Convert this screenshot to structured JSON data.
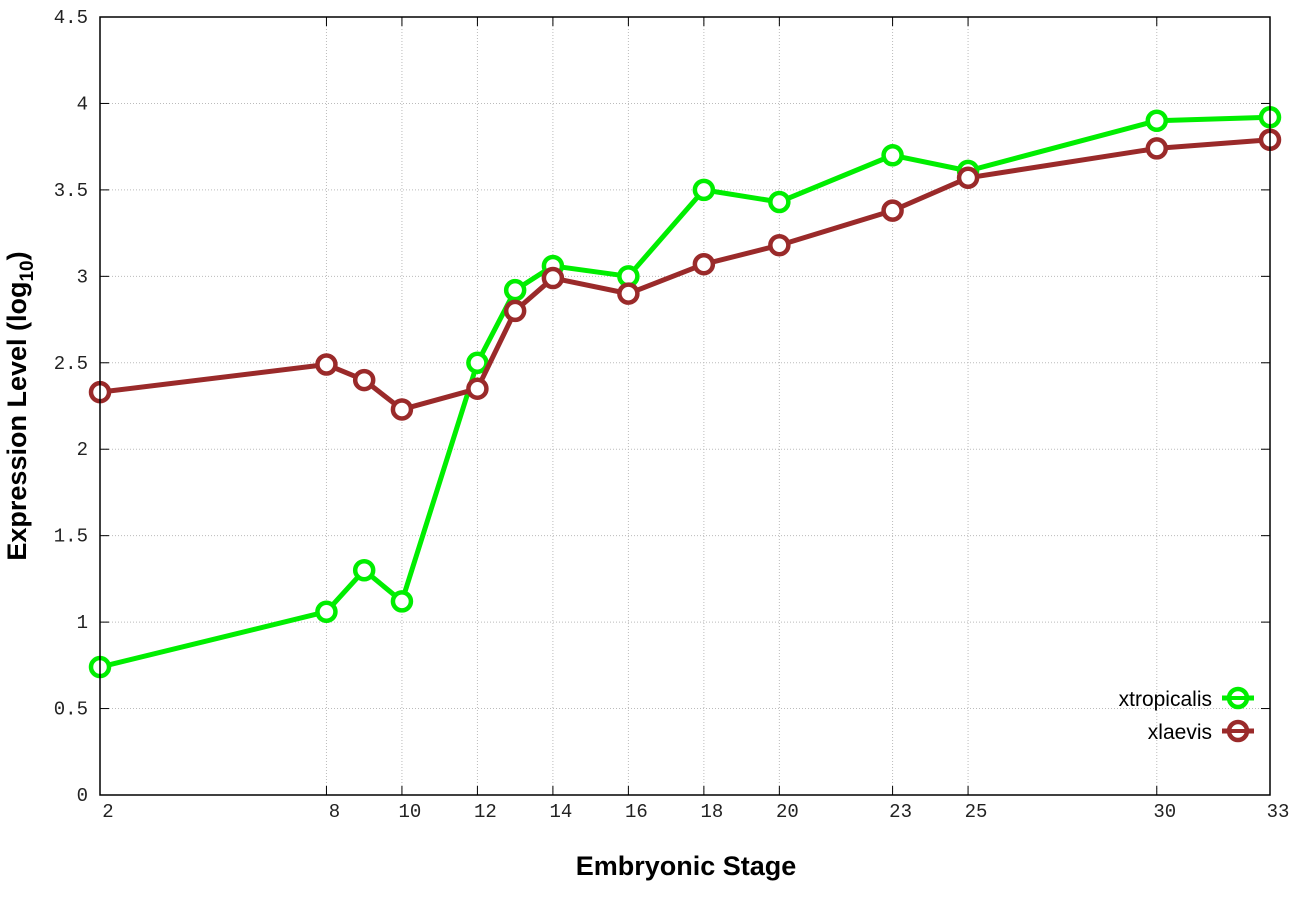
{
  "chart_data": {
    "type": "line",
    "title": "",
    "xlabel": "Embryonic Stage",
    "ylabel": "Expression Level (log",
    "ylabel_subscript": "10",
    "ylabel_suffix": ")",
    "x": [
      2,
      8,
      9,
      10,
      12,
      13,
      14,
      16,
      18,
      20,
      23,
      25,
      30,
      33
    ],
    "x_tick_labels": [
      "2",
      "8",
      "10",
      "12",
      "14",
      "16",
      "18",
      "20",
      "23",
      "25",
      "30",
      "33"
    ],
    "x_tick_values": [
      2,
      8,
      10,
      12,
      14,
      16,
      18,
      20,
      23,
      25,
      30,
      33
    ],
    "xlim": [
      2,
      33
    ],
    "ylim": [
      0,
      4.5
    ],
    "y_ticks": [
      0,
      0.5,
      1,
      1.5,
      2,
      2.5,
      3,
      3.5,
      4,
      4.5
    ],
    "y_tick_labels": [
      "0",
      "0.5",
      "1",
      "1.5",
      "2",
      "2.5",
      "3",
      "3.5",
      "4",
      "4.5"
    ],
    "grid": true,
    "legend_position": "bottom-right",
    "series": [
      {
        "name": "xtropicalis",
        "color": "#00ee00",
        "values": [
          0.74,
          1.06,
          1.3,
          1.12,
          2.5,
          2.92,
          3.06,
          3.0,
          3.5,
          3.43,
          3.7,
          3.61,
          3.9,
          3.92
        ]
      },
      {
        "name": "xlaevis",
        "color": "#9a2a2a",
        "values": [
          2.33,
          2.49,
          2.4,
          2.23,
          2.35,
          2.8,
          2.99,
          2.9,
          3.07,
          3.18,
          3.38,
          3.57,
          3.74,
          3.79
        ]
      }
    ]
  }
}
